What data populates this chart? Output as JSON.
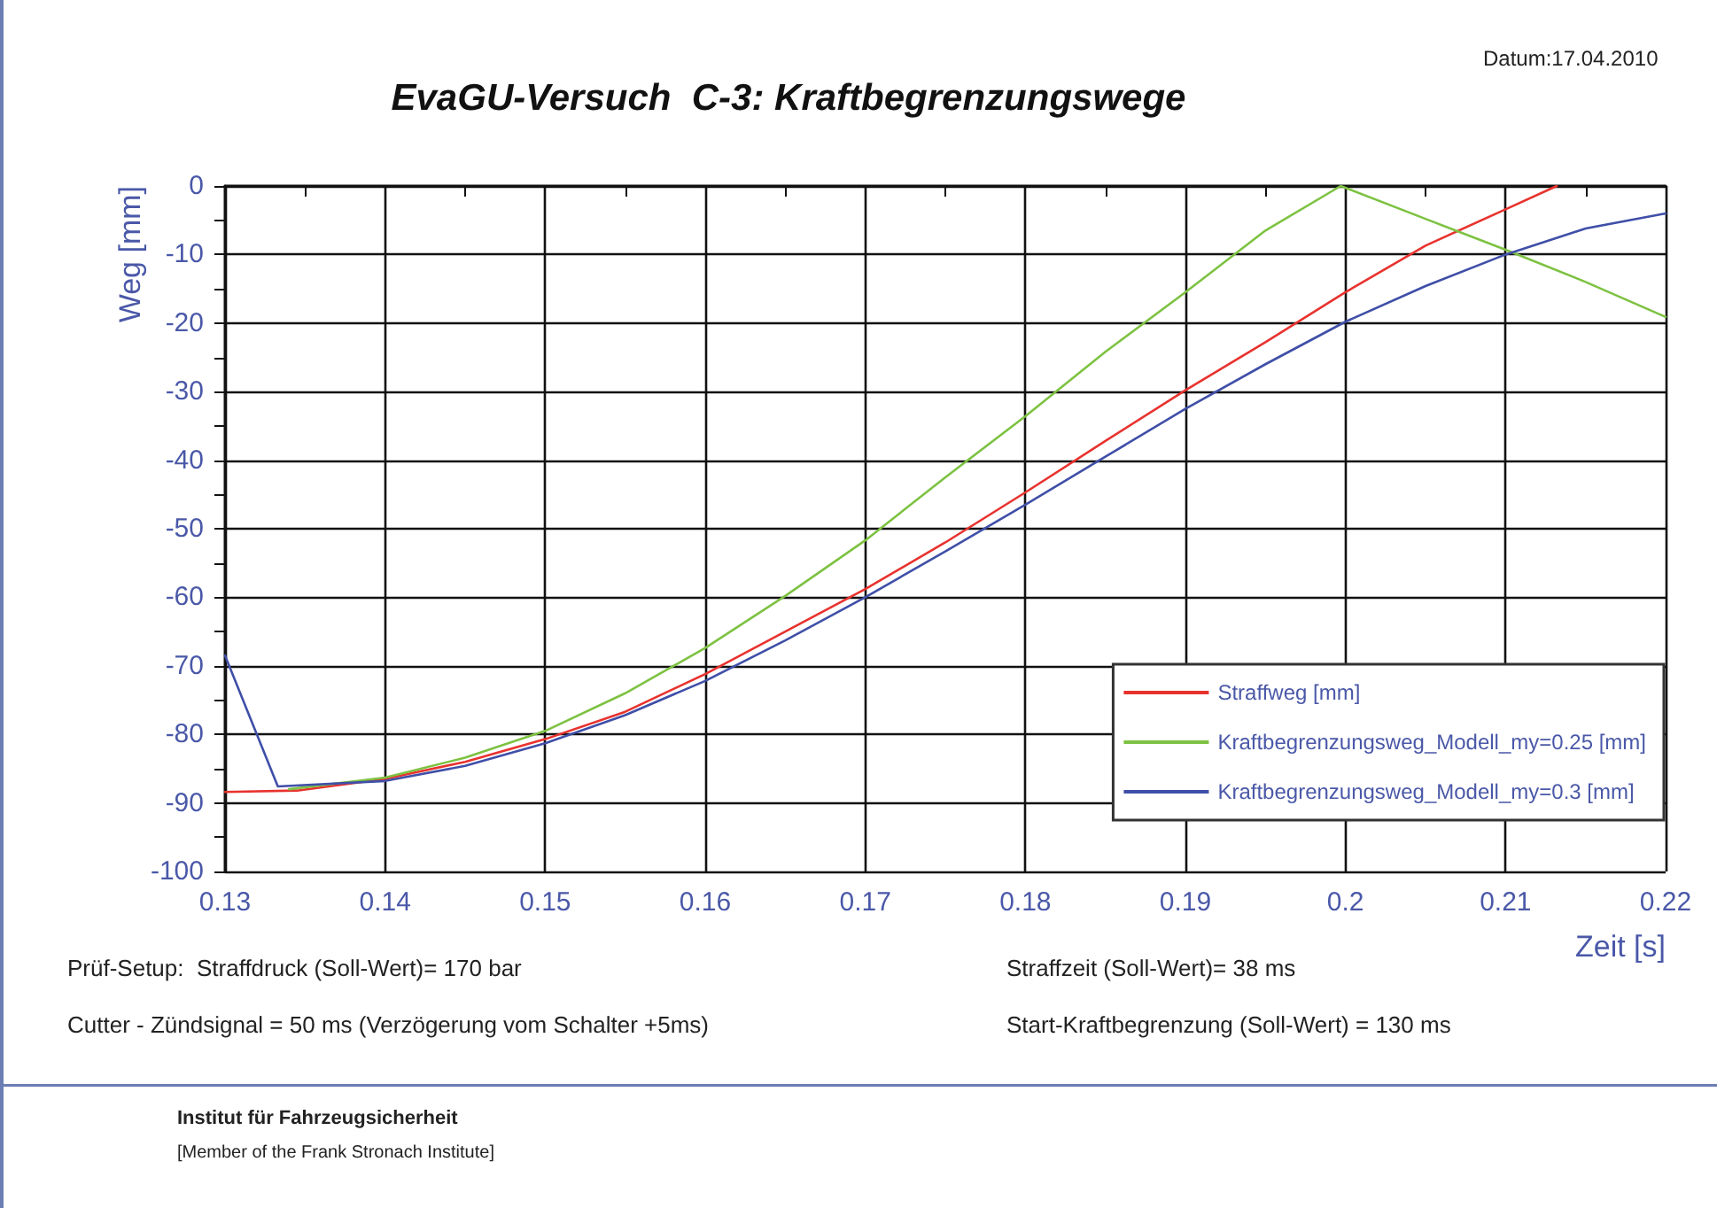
{
  "chart_data": {
    "type": "line",
    "title": "EvaGU-Versuch  C-3: Kraftbegrenzungswege",
    "xlabel": "Zeit [s]",
    "ylabel": "Weg [mm]",
    "annotations": [
      "Datum:17.04.2010",
      "Prüf-Setup:  Straffdruck (Soll-Wert)= 170 bar",
      "Straffzeit (Soll-Wert)= 38 ms",
      "Cutter - Zündsignal = 50 ms (Verzögerung vom Schalter +5ms)",
      "Start-Kraftbegrenzung (Soll-Wert) = 130 ms",
      "Institut für Fahrzeugsicherheit",
      "[Member of the Frank Stronach Institute]"
    ],
    "series": [
      {
        "name": "Straffweg [mm]",
        "color": "#e8322e",
        "x": [
          0.13,
          0.1345,
          0.14,
          0.145,
          0.15,
          0.155,
          0.16,
          0.165,
          0.17,
          0.175,
          0.18,
          0.185,
          0.19,
          0.195,
          0.2,
          0.205,
          0.21,
          0.2132
        ],
        "values": [
          -88.4,
          -88.2,
          -86.5,
          -84,
          -80.7,
          -76.7,
          -71.2,
          -65,
          -58.8,
          -52,
          -44.7,
          -37.2,
          -29.8,
          -22.8,
          -15.5,
          -8.7,
          -3.4,
          0
        ]
      },
      {
        "name": "Kraftbegrenzungsweg_Modell_my=0.25 [mm]",
        "color": "#7dc242",
        "x": [
          0.134,
          0.14,
          0.145,
          0.15,
          0.155,
          0.16,
          0.165,
          0.17,
          0.175,
          0.18,
          0.185,
          0.19,
          0.195,
          0.1997,
          0.205,
          0.21,
          0.215,
          0.22
        ],
        "values": [
          -88,
          -86.3,
          -83.4,
          -79.5,
          -74,
          -67.4,
          -59.8,
          -51.7,
          -42.5,
          -33.6,
          -24.2,
          -15.5,
          -6.5,
          0,
          -4.8,
          -9.3,
          -14,
          -19.1
        ]
      },
      {
        "name": "Kraftbegrenzungsweg_Modell_my=0.3 [mm]",
        "color": "#3f4fa8",
        "x": [
          0.13,
          0.1333,
          0.14,
          0.145,
          0.15,
          0.155,
          0.16,
          0.165,
          0.17,
          0.175,
          0.18,
          0.185,
          0.19,
          0.195,
          0.2,
          0.205,
          0.21,
          0.215,
          0.22
        ],
        "values": [
          -68.5,
          -87.6,
          -86.8,
          -84.6,
          -81.3,
          -77.2,
          -72.2,
          -66.3,
          -60,
          -53.3,
          -46.5,
          -39.5,
          -32.5,
          -26,
          -19.8,
          -14.6,
          -10,
          -6.2,
          -4
        ]
      }
    ],
    "xlim": [
      0.13,
      0.22
    ],
    "ylim": [
      -100,
      0
    ],
    "xticks": [
      0.13,
      {
        "value": 0.135,
        "label": null
      },
      0.14,
      {
        "value": 0.145,
        "label": null
      },
      0.15,
      {
        "value": 0.155,
        "label": null
      },
      0.16,
      {
        "value": 0.165,
        "label": null
      },
      0.17,
      {
        "value": 0.175,
        "label": null
      },
      0.18,
      {
        "value": 0.185,
        "label": null
      },
      0.19,
      {
        "value": 0.195,
        "label": null
      },
      0.2,
      {
        "value": 0.205,
        "label": null
      },
      0.21,
      {
        "value": 0.215,
        "label": null
      },
      0.22
    ],
    "yticks": [
      -100,
      {
        "value": -95,
        "label": null
      },
      -90,
      {
        "value": -85,
        "label": null
      },
      -80,
      {
        "value": -75,
        "label": null
      },
      -70,
      {
        "value": -65,
        "label": null
      },
      -60,
      {
        "value": -55,
        "label": null
      },
      -50,
      {
        "value": -45,
        "label": null
      },
      -40,
      {
        "value": -35,
        "label": null
      },
      -30,
      {
        "value": -25,
        "label": null
      },
      -20,
      {
        "value": -15,
        "label": null
      },
      -10,
      {
        "value": -5,
        "label": null
      },
      0
    ],
    "grid": true,
    "legend": "bottom right",
    "marker": "none",
    "line_style": "solid"
  }
}
